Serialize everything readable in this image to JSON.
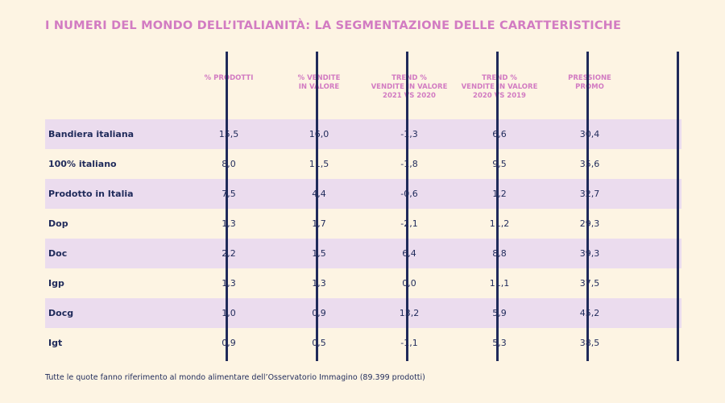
{
  "title": "I NUMERI DEL MONDO DELL’ITALIANITÀ: LA SEGMENTAZIONE DELLE CARATTERISTICHE",
  "columns": [
    [
      "% PRODOTTI"
    ],
    [
      "% VENDITE",
      "IN VALORE"
    ],
    [
      "TREND %",
      "VENDITE IN VALORE",
      "2021 VS 2020"
    ],
    [
      "TREND %",
      "VENDITE IN VALORE",
      "2020 VS 2019"
    ],
    [
      "PRESSIONE",
      "PROMO"
    ]
  ],
  "rows": [
    {
      "label": "Bandiera italiana",
      "values": [
        "15,5",
        "16,0",
        "-1,3",
        "6,6",
        "30,4"
      ]
    },
    {
      "label": "100% italiano",
      "values": [
        "8,0",
        "11,5",
        "-1,8",
        "9,5",
        "35,6"
      ]
    },
    {
      "label": "Prodotto in Italia",
      "values": [
        "7,5",
        "4,4",
        "-0,6",
        "1,2",
        "32,7"
      ]
    },
    {
      "label": "Dop",
      "values": [
        "1,3",
        "1,7",
        "-2,1",
        "11,2",
        "29,3"
      ]
    },
    {
      "label": "Doc",
      "values": [
        "2,2",
        "1,5",
        "6,4",
        "8,8",
        "39,3"
      ]
    },
    {
      "label": "Igp",
      "values": [
        "1,3",
        "1,3",
        "0,0",
        "11,1",
        "37,5"
      ]
    },
    {
      "label": "Docg",
      "values": [
        "1,0",
        "0,9",
        "13,2",
        "5,9",
        "45,2"
      ]
    },
    {
      "label": "Igt",
      "values": [
        "0,9",
        "0,5",
        "-1,1",
        "5,3",
        "38,5"
      ]
    }
  ],
  "footnote": "Tutte le quote fanno riferimento al mondo alimentare dell’Osservatorio Immagino (89.399 prodotti)",
  "colors": {
    "background": "#fdf4e3",
    "accent": "#d27bc2",
    "text": "#1f2a5a",
    "row_shade": "#ebdcee"
  }
}
